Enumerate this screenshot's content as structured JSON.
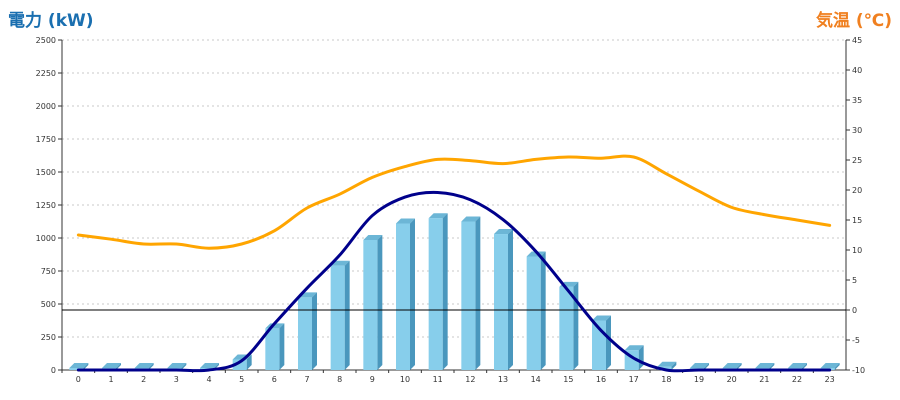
{
  "chart_data": {
    "type": "bar",
    "left_axis_title": "電力 (kW)",
    "right_axis_title": "気温 (℃)",
    "categories": [
      "0",
      "1",
      "2",
      "3",
      "4",
      "5",
      "6",
      "7",
      "8",
      "9",
      "10",
      "11",
      "12",
      "13",
      "14",
      "15",
      "16",
      "17",
      "18",
      "19",
      "20",
      "21",
      "22",
      "23"
    ],
    "y_left": {
      "min": 0,
      "max": 2500,
      "ticks": [
        "0",
        "250",
        "500",
        "750",
        "1000",
        "1250",
        "1500",
        "1750",
        "2000",
        "2250",
        "2500"
      ]
    },
    "y_right": {
      "min": -10,
      "max": 45,
      "ticks": [
        "-10",
        "-5",
        "0",
        "5",
        "10",
        "15",
        "20",
        "25",
        "30",
        "35",
        "40",
        "45"
      ]
    },
    "grid": "horizontal-dashed",
    "series": [
      {
        "kind": "bar",
        "axis": "left",
        "color": "#87ceeb",
        "values": [
          15,
          15,
          15,
          15,
          15,
          80,
          315,
          550,
          790,
          985,
          1110,
          1150,
          1125,
          1030,
          860,
          630,
          375,
          150,
          25,
          15,
          15,
          15,
          15,
          15
        ]
      },
      {
        "kind": "line",
        "axis": "left",
        "color": "#00008b",
        "values": [
          0,
          0,
          0,
          0,
          0,
          70,
          350,
          620,
          870,
          1170,
          1310,
          1345,
          1290,
          1140,
          900,
          600,
          300,
          90,
          0,
          0,
          0,
          0,
          0,
          0
        ]
      },
      {
        "kind": "line",
        "axis": "right",
        "color": "#ffa500",
        "values": [
          12.5,
          11.8,
          11.0,
          11.0,
          10.3,
          11.0,
          13.2,
          17.0,
          19.3,
          22.1,
          23.9,
          25.1,
          24.9,
          24.4,
          25.1,
          25.5,
          25.3,
          25.5,
          22.7,
          19.8,
          17.1,
          15.9,
          15.0,
          14.1
        ]
      }
    ],
    "reference_line": {
      "axis": "right",
      "value": 0,
      "color": "#000000"
    },
    "colors": {
      "left_title": "#1a6fb0",
      "right_title": "#f08020"
    }
  }
}
